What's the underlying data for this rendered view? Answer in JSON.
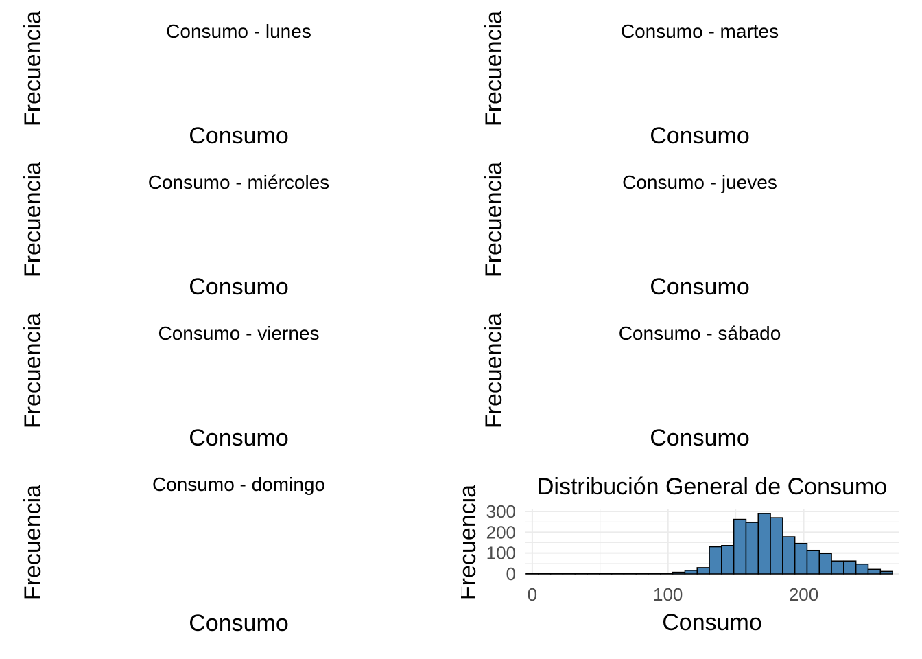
{
  "facets": [
    {
      "title": "Consumo - lunes",
      "xlabel": "Consumo",
      "ylabel": "Frecuencia"
    },
    {
      "title": "Consumo - martes",
      "xlabel": "Consumo",
      "ylabel": "Frecuencia"
    },
    {
      "title": "Consumo - miércoles",
      "xlabel": "Consumo",
      "ylabel": "Frecuencia"
    },
    {
      "title": "Consumo - jueves",
      "xlabel": "Consumo",
      "ylabel": "Frecuencia"
    },
    {
      "title": "Consumo - viernes",
      "xlabel": "Consumo",
      "ylabel": "Frecuencia"
    },
    {
      "title": "Consumo - sábado",
      "xlabel": "Consumo",
      "ylabel": "Frecuencia"
    },
    {
      "title": "Consumo - domingo",
      "xlabel": "Consumo",
      "ylabel": "Frecuencia"
    }
  ],
  "chart_data": {
    "type": "bar",
    "title": "Distribución General de Consumo",
    "xlabel": "Consumo",
    "ylabel": "Frecuencia",
    "xlim": [
      -5,
      270
    ],
    "ylim": [
      0,
      310
    ],
    "xticks": [
      0,
      100,
      200
    ],
    "yticks": [
      0,
      100,
      200,
      300
    ],
    "bin_width": 9,
    "bins": [
      {
        "x": 0,
        "y": 1
      },
      {
        "x": 9,
        "y": 1
      },
      {
        "x": 18,
        "y": 1
      },
      {
        "x": 27,
        "y": 1
      },
      {
        "x": 36,
        "y": 1
      },
      {
        "x": 45,
        "y": 1
      },
      {
        "x": 54,
        "y": 1
      },
      {
        "x": 63,
        "y": 1
      },
      {
        "x": 72,
        "y": 1
      },
      {
        "x": 81,
        "y": 1
      },
      {
        "x": 90,
        "y": 1
      },
      {
        "x": 99,
        "y": 3
      },
      {
        "x": 108,
        "y": 8
      },
      {
        "x": 117,
        "y": 17
      },
      {
        "x": 126,
        "y": 30
      },
      {
        "x": 135,
        "y": 130
      },
      {
        "x": 144,
        "y": 136
      },
      {
        "x": 153,
        "y": 262
      },
      {
        "x": 162,
        "y": 247
      },
      {
        "x": 171,
        "y": 290
      },
      {
        "x": 180,
        "y": 270
      },
      {
        "x": 189,
        "y": 178
      },
      {
        "x": 198,
        "y": 146
      },
      {
        "x": 207,
        "y": 113
      },
      {
        "x": 216,
        "y": 98
      },
      {
        "x": 225,
        "y": 62
      },
      {
        "x": 234,
        "y": 62
      },
      {
        "x": 243,
        "y": 47
      },
      {
        "x": 252,
        "y": 22
      },
      {
        "x": 261,
        "y": 12
      }
    ],
    "grid": true,
    "colors": {
      "bar_fill": "#4682b4",
      "bar_stroke": "#000000",
      "grid": "#ebebeb",
      "tick_text": "#4d4d4d"
    }
  }
}
